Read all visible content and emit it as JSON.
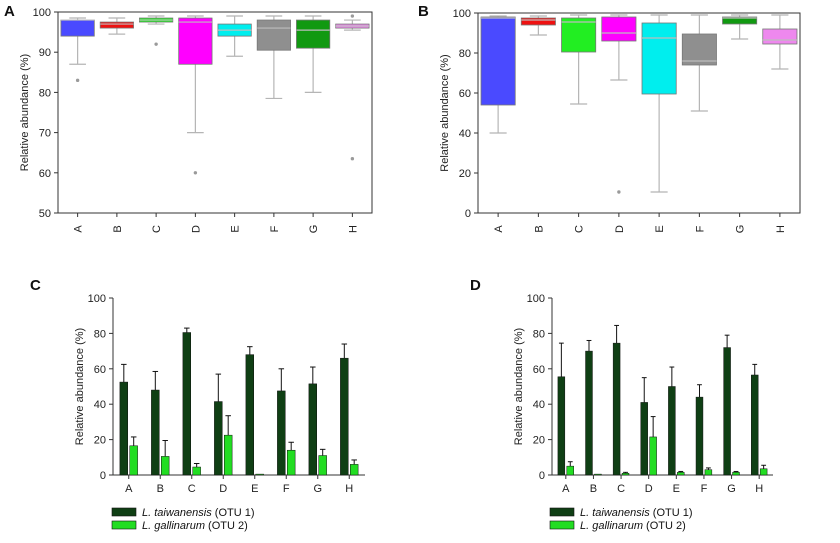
{
  "panels": [
    "A",
    "B",
    "C",
    "D"
  ],
  "chart_data": [
    {
      "panel": "A",
      "type": "box",
      "ylabel": "Relative abundance (%)",
      "ylim": [
        50,
        100
      ],
      "yticks": [
        50,
        60,
        70,
        80,
        90,
        100
      ],
      "categories": [
        "A",
        "B",
        "C",
        "D",
        "E",
        "F",
        "G",
        "H"
      ],
      "colors": [
        "#4a4aff",
        "#ee1111",
        "#22ee22",
        "#ff00ff",
        "#00eeee",
        "#8f8f8f",
        "#119911",
        "#ee88ee"
      ],
      "boxes": [
        {
          "whisker_low": 87,
          "q1": 94,
          "median": 98,
          "q3": 98,
          "whisker_high": 98.5,
          "outliers": [
            83
          ]
        },
        {
          "whisker_low": 94.5,
          "q1": 96,
          "median": 97,
          "q3": 97.5,
          "whisker_high": 98.5,
          "outliers": []
        },
        {
          "whisker_low": 97,
          "q1": 97.5,
          "median": 98,
          "q3": 98.5,
          "whisker_high": 99,
          "outliers": [
            92
          ]
        },
        {
          "whisker_low": 70,
          "q1": 87,
          "median": 97.5,
          "q3": 98.5,
          "whisker_high": 99,
          "outliers": [
            60
          ]
        },
        {
          "whisker_low": 89,
          "q1": 94,
          "median": 95.5,
          "q3": 97,
          "whisker_high": 99,
          "outliers": []
        },
        {
          "whisker_low": 78.5,
          "q1": 90.5,
          "median": 96,
          "q3": 98,
          "whisker_high": 99,
          "outliers": []
        },
        {
          "whisker_low": 80,
          "q1": 91,
          "median": 95.5,
          "q3": 98,
          "whisker_high": 99,
          "outliers": []
        },
        {
          "whisker_low": 95.5,
          "q1": 96,
          "median": 96.5,
          "q3": 97,
          "whisker_high": 98,
          "outliers": [
            99,
            63.5
          ]
        }
      ]
    },
    {
      "panel": "B",
      "type": "box",
      "ylabel": "Relative abundance (%)",
      "ylim": [
        0,
        100
      ],
      "yticks": [
        0,
        20,
        40,
        60,
        80,
        100
      ],
      "categories": [
        "A",
        "B",
        "C",
        "D",
        "E",
        "F",
        "G",
        "H"
      ],
      "colors": [
        "#4a4aff",
        "#ee1111",
        "#22ee22",
        "#ff00ff",
        "#00eeee",
        "#8f8f8f",
        "#119911",
        "#ee88ee"
      ],
      "boxes": [
        {
          "whisker_low": 40,
          "q1": 54,
          "median": 97.5,
          "q3": 98,
          "whisker_high": 98.5,
          "outliers": []
        },
        {
          "whisker_low": 89,
          "q1": 94,
          "median": 96.5,
          "q3": 97.5,
          "whisker_high": 98.5,
          "outliers": []
        },
        {
          "whisker_low": 54.5,
          "q1": 80.5,
          "median": 95.5,
          "q3": 97.5,
          "whisker_high": 99,
          "outliers": []
        },
        {
          "whisker_low": 66.5,
          "q1": 86,
          "median": 90,
          "q3": 98,
          "whisker_high": 99,
          "outliers": [
            10.5
          ]
        },
        {
          "whisker_low": 10.5,
          "q1": 59.5,
          "median": 87.5,
          "q3": 95,
          "whisker_high": 99,
          "outliers": []
        },
        {
          "whisker_low": 51,
          "q1": 74,
          "median": 76,
          "q3": 89.5,
          "whisker_high": 99,
          "outliers": []
        },
        {
          "whisker_low": 87,
          "q1": 94.5,
          "median": 97.5,
          "q3": 98,
          "whisker_high": 99,
          "outliers": []
        },
        {
          "whisker_low": 72,
          "q1": 84.5,
          "median": 86.5,
          "q3": 92,
          "whisker_high": 99,
          "outliers": []
        }
      ]
    },
    {
      "panel": "C",
      "type": "bar",
      "ylabel": "Relative abundance (%)",
      "ylim": [
        0,
        100
      ],
      "yticks": [
        0,
        20,
        40,
        60,
        80,
        100
      ],
      "categories": [
        "A",
        "B",
        "C",
        "D",
        "E",
        "F",
        "G",
        "H"
      ],
      "series": [
        {
          "name": "L. taiwanensis (OTU 1)",
          "species": "L. taiwanensis",
          "otu": "(OTU 1)",
          "color": "#0f3f14",
          "values": [
            52.5,
            48,
            80.5,
            41.5,
            68,
            47.5,
            51.5,
            66
          ],
          "errors": [
            10,
            10.5,
            2.5,
            15.5,
            4.5,
            12.5,
            9.5,
            8
          ]
        },
        {
          "name": "L. gallinarum (OTU 2)",
          "species": "L. gallinarum",
          "otu": "(OTU 2)",
          "color": "#22dd22",
          "values": [
            16.5,
            10.5,
            4.5,
            22.5,
            0.5,
            14,
            11,
            6
          ],
          "errors": [
            5,
            9,
            2,
            11,
            0,
            4.5,
            3.5,
            2.5
          ]
        }
      ]
    },
    {
      "panel": "D",
      "type": "bar",
      "ylabel": "Relative abundance (%)",
      "ylim": [
        0,
        100
      ],
      "yticks": [
        0,
        20,
        40,
        60,
        80,
        100
      ],
      "categories": [
        "A",
        "B",
        "C",
        "D",
        "E",
        "F",
        "G",
        "H"
      ],
      "series": [
        {
          "name": "L. taiwanensis (OTU 1)",
          "species": "L. taiwanensis",
          "otu": "(OTU 1)",
          "color": "#0f3f14",
          "values": [
            55.5,
            70,
            74.5,
            41,
            50,
            44,
            72,
            56.5
          ],
          "errors": [
            19,
            6,
            10,
            14,
            11,
            7,
            7,
            6
          ]
        },
        {
          "name": "L. gallinarum (OTU 2)",
          "species": "L. gallinarum",
          "otu": "(OTU 2)",
          "color": "#22dd22",
          "values": [
            5,
            0.5,
            1,
            21.5,
            1.5,
            3,
            1.5,
            3.5
          ],
          "errors": [
            2.5,
            0,
            0.5,
            11.5,
            0.5,
            1,
            0.5,
            2
          ]
        }
      ]
    }
  ]
}
